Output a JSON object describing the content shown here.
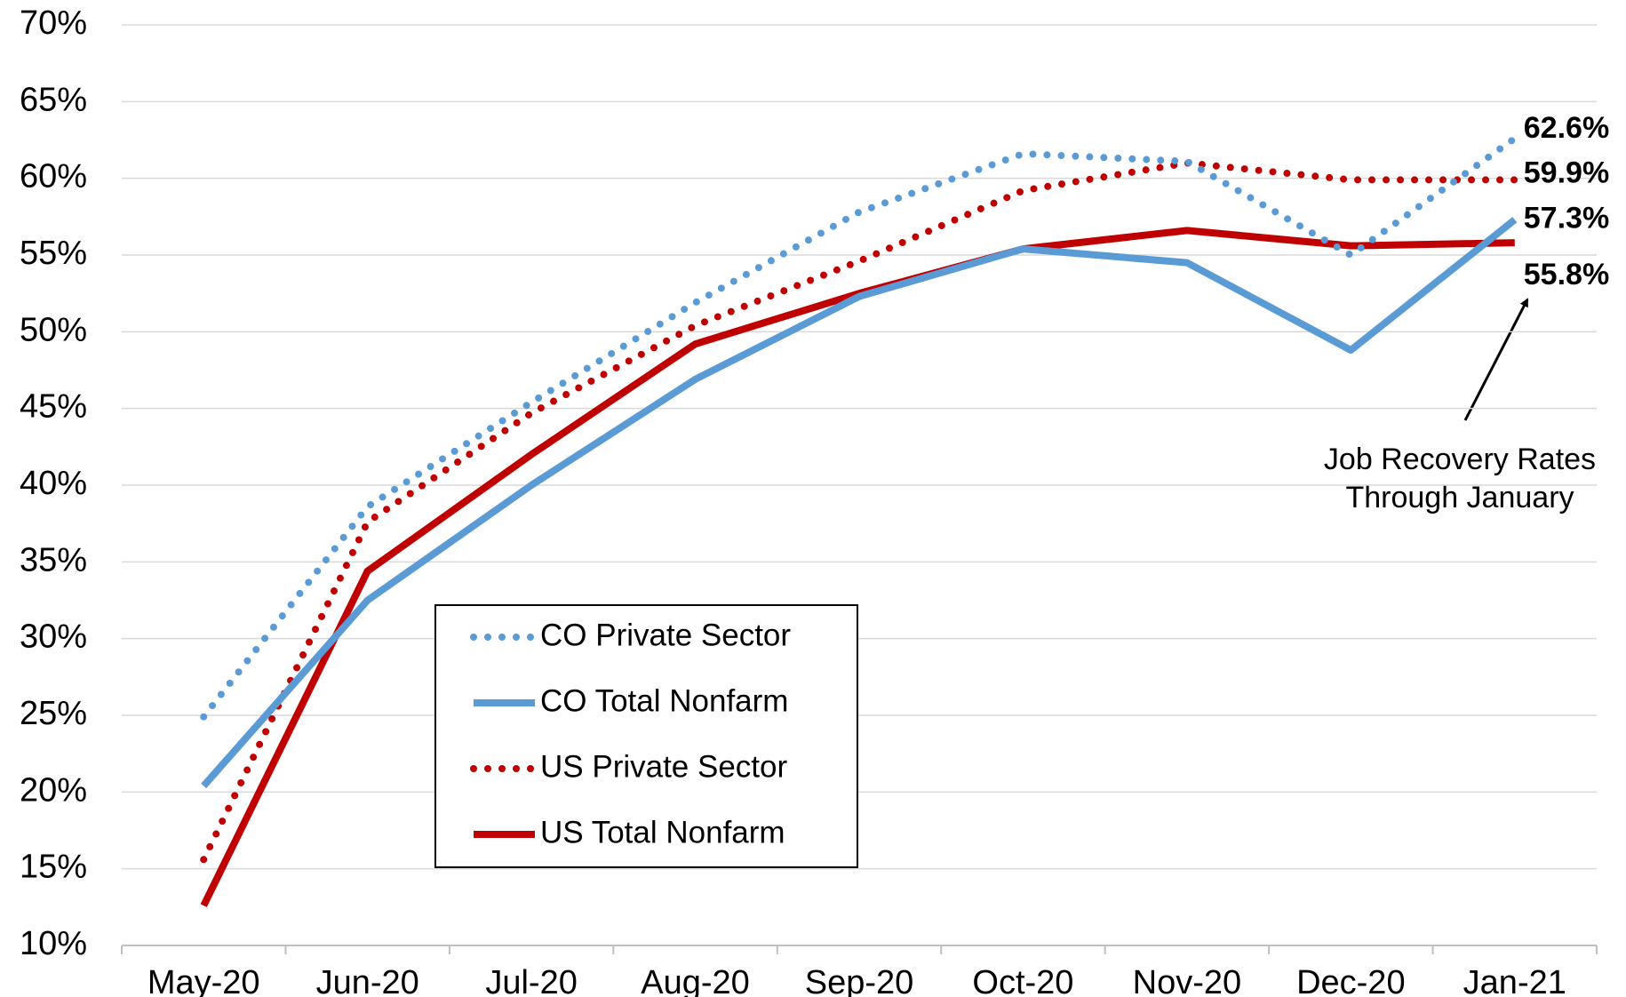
{
  "chart_data": {
    "type": "line",
    "categories": [
      "May-20",
      "Jun-20",
      "Jul-20",
      "Aug-20",
      "Sep-20",
      "Oct-20",
      "Nov-20",
      "Dec-20",
      "Jan-21"
    ],
    "series": [
      {
        "name": "CO Private Sector",
        "color": "#5b9bd5",
        "style": "dotted",
        "values": [
          24.9,
          38.6,
          45.4,
          51.9,
          57.8,
          61.6,
          61.1,
          55.0,
          62.6
        ],
        "value_labels": [
          null,
          null,
          null,
          null,
          null,
          null,
          null,
          null,
          "62.6%"
        ]
      },
      {
        "name": "CO Total Nonfarm",
        "color": "#5b9bd5",
        "style": "solid",
        "values": [
          20.4,
          32.5,
          40.0,
          46.9,
          52.3,
          55.4,
          54.5,
          48.8,
          57.3
        ],
        "value_labels": [
          null,
          null,
          null,
          null,
          null,
          null,
          null,
          null,
          "57.3%"
        ]
      },
      {
        "name": "US Private Sector",
        "color": "#c00000",
        "style": "dotted",
        "values": [
          15.6,
          37.6,
          44.7,
          50.4,
          54.6,
          59.2,
          61.0,
          59.9,
          59.9
        ],
        "value_labels": [
          null,
          null,
          null,
          null,
          null,
          null,
          null,
          null,
          "59.9%"
        ]
      },
      {
        "name": "US Total Nonfarm",
        "color": "#c00000",
        "style": "solid",
        "values": [
          12.6,
          34.4,
          42.0,
          49.2,
          52.5,
          55.4,
          56.6,
          55.6,
          55.8
        ],
        "value_labels": [
          null,
          null,
          null,
          null,
          null,
          null,
          null,
          null,
          "55.8%"
        ]
      }
    ],
    "ylim": [
      10,
      70
    ],
    "yticks": [
      {
        "value": 10,
        "label": "10%"
      },
      {
        "value": 15,
        "label": "15%"
      },
      {
        "value": 20,
        "label": "20%"
      },
      {
        "value": 25,
        "label": "25%"
      },
      {
        "value": 30,
        "label": "30%"
      },
      {
        "value": 35,
        "label": "35%"
      },
      {
        "value": 40,
        "label": "40%"
      },
      {
        "value": 45,
        "label": "45%"
      },
      {
        "value": 50,
        "label": "50%"
      },
      {
        "value": 55,
        "label": "55%"
      },
      {
        "value": 60,
        "label": "60%"
      },
      {
        "value": 65,
        "label": "65%"
      },
      {
        "value": 70,
        "label": "70%"
      }
    ],
    "grid": true,
    "annotation": [
      "Job Recovery Rates",
      "Through January"
    ]
  }
}
